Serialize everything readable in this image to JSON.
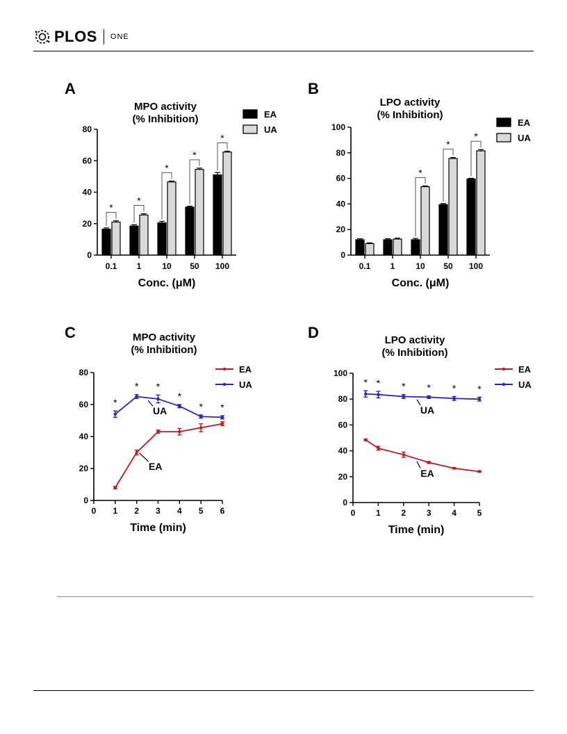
{
  "header": {
    "brand": "PLOS",
    "journal": "ONE"
  },
  "chart_data": [
    {
      "panel": "A",
      "type": "bar",
      "title": "MPO activity",
      "subtitle": "(% Inhibition)",
      "xlabel": "Conc. (μM)",
      "categories": [
        "0.1",
        "1",
        "10",
        "50",
        "100"
      ],
      "series": [
        {
          "name": "EA",
          "values": [
            16.5,
            18.5,
            20.5,
            30.5,
            51
          ],
          "err": [
            0.8,
            0.8,
            1,
            0.6,
            1.5
          ],
          "color": "#000000"
        },
        {
          "name": "UA",
          "values": [
            21,
            25.5,
            46.5,
            54.5,
            65.5
          ],
          "err": [
            0.8,
            0.8,
            0.6,
            0.8,
            0.6
          ],
          "color": "#d9d9d9"
        }
      ],
      "significance": [
        "*",
        "*",
        "*",
        "*",
        "*"
      ],
      "ylim": [
        0,
        80
      ],
      "yticks": [
        "0",
        "20",
        "40",
        "60",
        "80"
      ],
      "legend": "top-right"
    },
    {
      "panel": "B",
      "type": "bar",
      "title": "LPO activity",
      "subtitle": "(% Inhibition)",
      "xlabel": "Conc. (μM)",
      "categories": [
        "0.1",
        "1",
        "10",
        "50",
        "100"
      ],
      "series": [
        {
          "name": "EA",
          "values": [
            12,
            12,
            12,
            39.5,
            59.5
          ],
          "err": [
            0.8,
            0.8,
            1,
            0.8,
            0.6
          ],
          "color": "#000000"
        },
        {
          "name": "UA",
          "values": [
            9,
            12.5,
            53.5,
            75.5,
            81.5
          ],
          "err": [
            0.6,
            0.8,
            0.6,
            0.8,
            1
          ],
          "color": "#d9d9d9"
        }
      ],
      "significance": [
        "",
        "",
        "*",
        "*",
        "*"
      ],
      "ylim": [
        0,
        100
      ],
      "yticks": [
        "0",
        "20",
        "40",
        "60",
        "80",
        "100"
      ],
      "legend": "top-right"
    },
    {
      "panel": "C",
      "type": "line",
      "title": "MPO activity",
      "subtitle": "(% Inhibition)",
      "xlabel": "Time (min)",
      "x": [
        1,
        2,
        3,
        4,
        5,
        6
      ],
      "series": [
        {
          "name": "EA",
          "values": [
            8,
            30,
            43,
            43,
            45.5,
            48
          ],
          "err": [
            0.8,
            1.5,
            1,
            2,
            2.5,
            1.2
          ],
          "color": "#c0191c"
        },
        {
          "name": "UA",
          "values": [
            54,
            65,
            63.5,
            59,
            52.5,
            52
          ],
          "err": [
            2,
            1.2,
            2.5,
            1,
            1,
            1
          ],
          "color": "#2424c8"
        }
      ],
      "significance": [
        "*",
        "*",
        "*",
        "*",
        "*",
        "*"
      ],
      "annotations": [
        {
          "label": "UA"
        },
        {
          "label": "EA"
        }
      ],
      "xlim": [
        0,
        6
      ],
      "ylim": [
        0,
        80
      ],
      "xticks": [
        "0",
        "1",
        "2",
        "3",
        "4",
        "5",
        "6"
      ],
      "yticks": [
        "0",
        "20",
        "40",
        "60",
        "80"
      ],
      "legend": "top-right"
    },
    {
      "panel": "D",
      "type": "line",
      "title": "LPO activity",
      "subtitle": "(% Inhibition)",
      "xlabel": "Time (min)",
      "x": [
        0.5,
        1,
        2,
        3,
        4,
        5
      ],
      "series": [
        {
          "name": "EA",
          "values": [
            48.5,
            42,
            37,
            31,
            26.5,
            24
          ],
          "err": [
            0.6,
            1.5,
            2,
            0.8,
            0.5,
            0.5
          ],
          "color": "#c0191c"
        },
        {
          "name": "UA",
          "values": [
            84,
            83.5,
            82,
            81.5,
            80.5,
            80
          ],
          "err": [
            2.5,
            2.5,
            1.5,
            1,
            1.5,
            1.5
          ],
          "color": "#2424c8"
        }
      ],
      "significance": [
        "*",
        "*",
        "*",
        "*",
        "*",
        "*"
      ],
      "annotations": [
        {
          "label": "UA"
        },
        {
          "label": "EA"
        }
      ],
      "xlim": [
        0,
        5
      ],
      "ylim": [
        0,
        100
      ],
      "xticks": [
        "0",
        "1",
        "2",
        "3",
        "4",
        "5"
      ],
      "yticks": [
        "0",
        "20",
        "40",
        "60",
        "80",
        "100"
      ],
      "legend": "top-right"
    }
  ]
}
